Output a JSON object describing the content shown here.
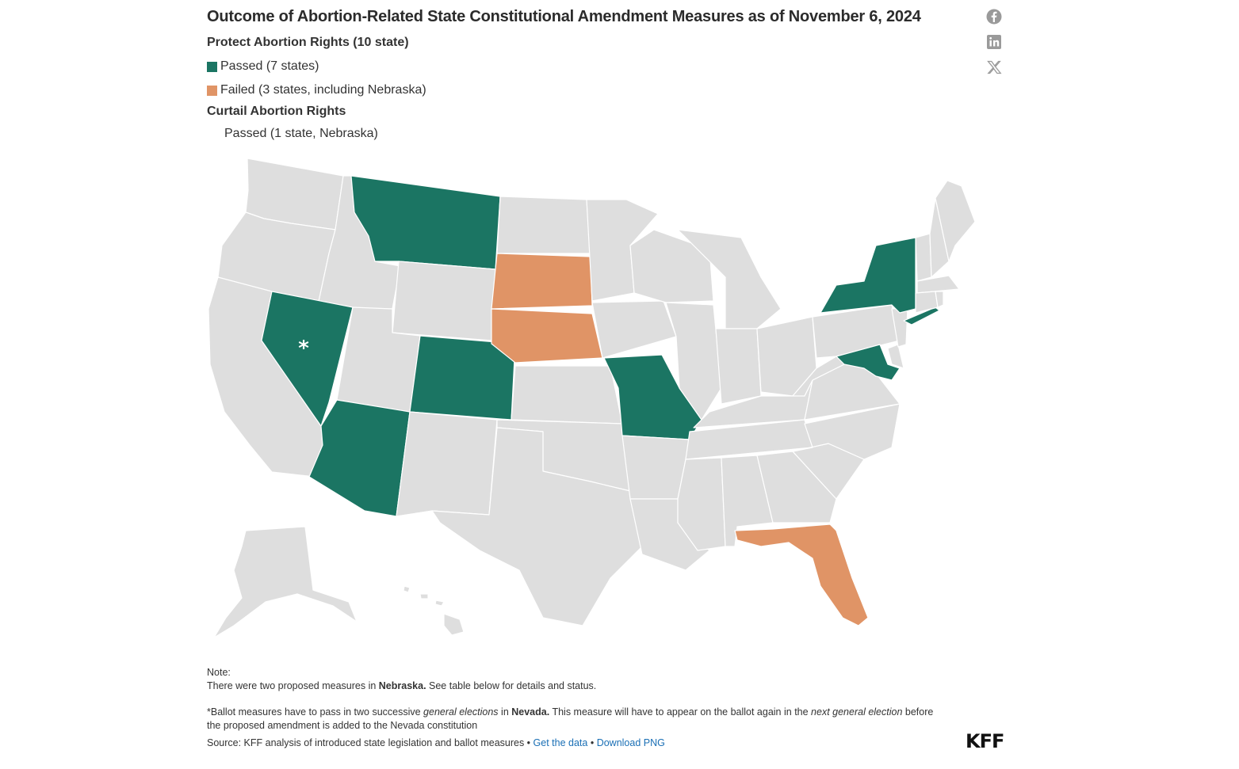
{
  "title": "Outcome of Abortion-Related State Constitutional Amendment Measures as of November 6, 2024",
  "legend": {
    "protect_heading": "Protect Abortion Rights (10 state)",
    "passed_label": "Passed (7 states)",
    "failed_label": "Failed (3 states, including Nebraska)",
    "curtail_heading": "Curtail Abortion Rights",
    "curtail_passed_label": "Passed (1 state, Nebraska)"
  },
  "colors": {
    "passed": "#1b7563",
    "failed": "#e09466",
    "neutral": "#dedede",
    "border": "#ffffff",
    "link": "#1a6fb5"
  },
  "share_icons": [
    "facebook-icon",
    "linkedin-icon",
    "x-icon"
  ],
  "map": {
    "marker": "*",
    "marker_state": "Nevada",
    "passed_states": [
      "Montana",
      "Nevada",
      "Arizona",
      "Colorado",
      "Missouri",
      "New York",
      "Maryland"
    ],
    "failed_states": [
      "South Dakota",
      "Nebraska",
      "Florida"
    ],
    "curtail_passed_states": [
      "Nebraska"
    ]
  },
  "notes": {
    "note_heading": "Note:",
    "note1_pre": "There were two proposed measures in ",
    "note1_bold": "Nebraska.",
    "note1_post": " See table below for details and status.",
    "note2_pre": "*Ballot measures have to pass in two successive ",
    "note2_em1": "general elections",
    "note2_mid": " in ",
    "note2_bold": "Nevada.",
    "note2_mid2": " This measure will have to appear on the ballot again in the ",
    "note2_em2": "next general election",
    "note2_post": " before the proposed amendment is added to the Nevada constitution",
    "source": "Source: KFF analysis of introduced state legislation and ballot measures • ",
    "get_data": "Get the data",
    "sep": " • ",
    "download": "Download PNG"
  },
  "logo": "KFF"
}
